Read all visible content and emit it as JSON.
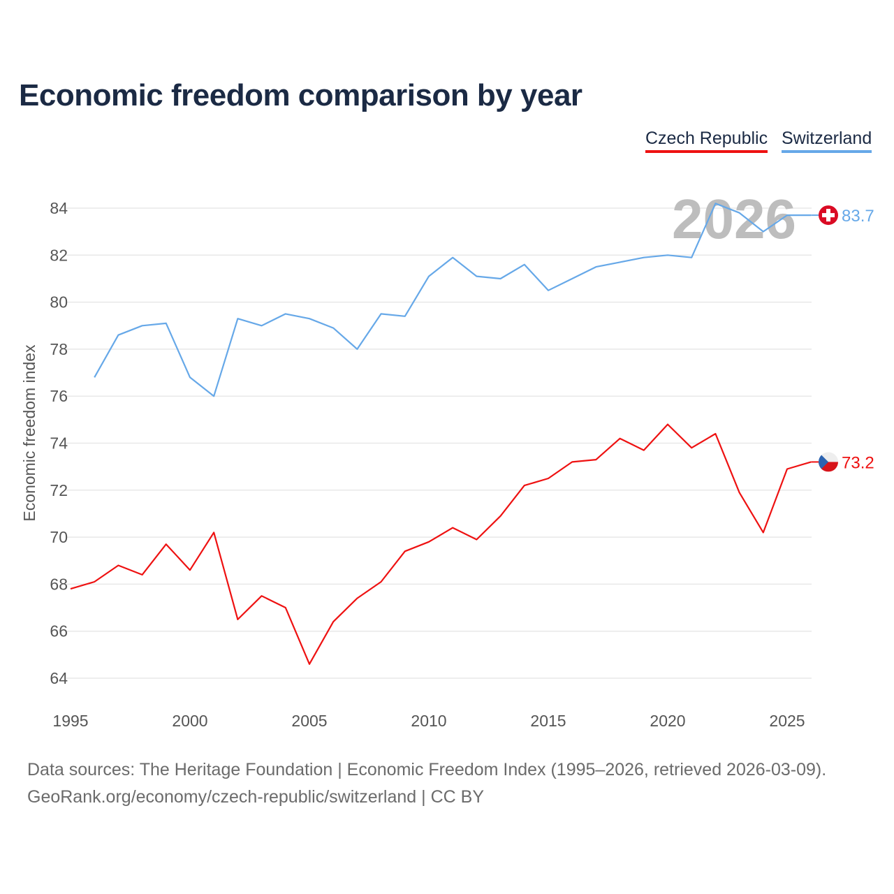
{
  "chart_data": {
    "type": "line",
    "title": "Economic freedom comparison by year",
    "ylabel": "Economic freedom index",
    "xlabel": "",
    "xlim": [
      1995,
      2026
    ],
    "ylim": [
      63,
      85
    ],
    "yticks": [
      64,
      66,
      68,
      70,
      72,
      74,
      76,
      78,
      80,
      82,
      84
    ],
    "xticks": [
      1995,
      2000,
      2005,
      2010,
      2015,
      2020,
      2025
    ],
    "grid": true,
    "legend": "top-right",
    "year_watermark": "2026",
    "series": [
      {
        "name": "Czech Republic",
        "color": "#ee1111",
        "flag_icon": "czech-flag-icon",
        "end_label": "73.2",
        "x": [
          1995,
          1996,
          1997,
          1998,
          1999,
          2000,
          2001,
          2002,
          2003,
          2004,
          2005,
          2006,
          2007,
          2008,
          2009,
          2010,
          2011,
          2012,
          2013,
          2014,
          2015,
          2016,
          2017,
          2018,
          2019,
          2020,
          2021,
          2022,
          2023,
          2024,
          2025,
          2026
        ],
        "values": [
          67.8,
          68.1,
          68.8,
          68.4,
          69.7,
          68.6,
          70.2,
          66.5,
          67.5,
          67.0,
          64.6,
          66.4,
          67.4,
          68.1,
          69.4,
          69.8,
          70.4,
          69.9,
          70.9,
          72.2,
          72.5,
          73.2,
          73.3,
          74.2,
          73.7,
          74.8,
          73.8,
          74.4,
          71.9,
          70.2,
          72.9,
          73.2
        ]
      },
      {
        "name": "Switzerland",
        "color": "#66a8e8",
        "flag_icon": "swiss-flag-icon",
        "end_label": "83.7",
        "x": [
          1996,
          1997,
          1998,
          1999,
          2000,
          2001,
          2002,
          2003,
          2004,
          2005,
          2006,
          2007,
          2008,
          2009,
          2010,
          2011,
          2012,
          2013,
          2014,
          2015,
          2016,
          2017,
          2018,
          2019,
          2020,
          2021,
          2022,
          2023,
          2024,
          2025,
          2026
        ],
        "values": [
          76.8,
          78.6,
          79.0,
          79.1,
          76.8,
          76.0,
          79.3,
          79.0,
          79.5,
          79.3,
          78.9,
          78.0,
          79.5,
          79.4,
          81.1,
          81.9,
          81.1,
          81.0,
          81.6,
          80.5,
          81.0,
          81.5,
          81.7,
          81.9,
          82.0,
          81.9,
          84.2,
          83.8,
          83.0,
          83.7,
          83.7
        ]
      }
    ]
  },
  "footer": {
    "line1": "Data sources: The Heritage Foundation | Economic Freedom Index (1995–2026, retrieved 2026-03-09).",
    "line2": "GeoRank.org/economy/czech-republic/switzerland | CC BY"
  }
}
